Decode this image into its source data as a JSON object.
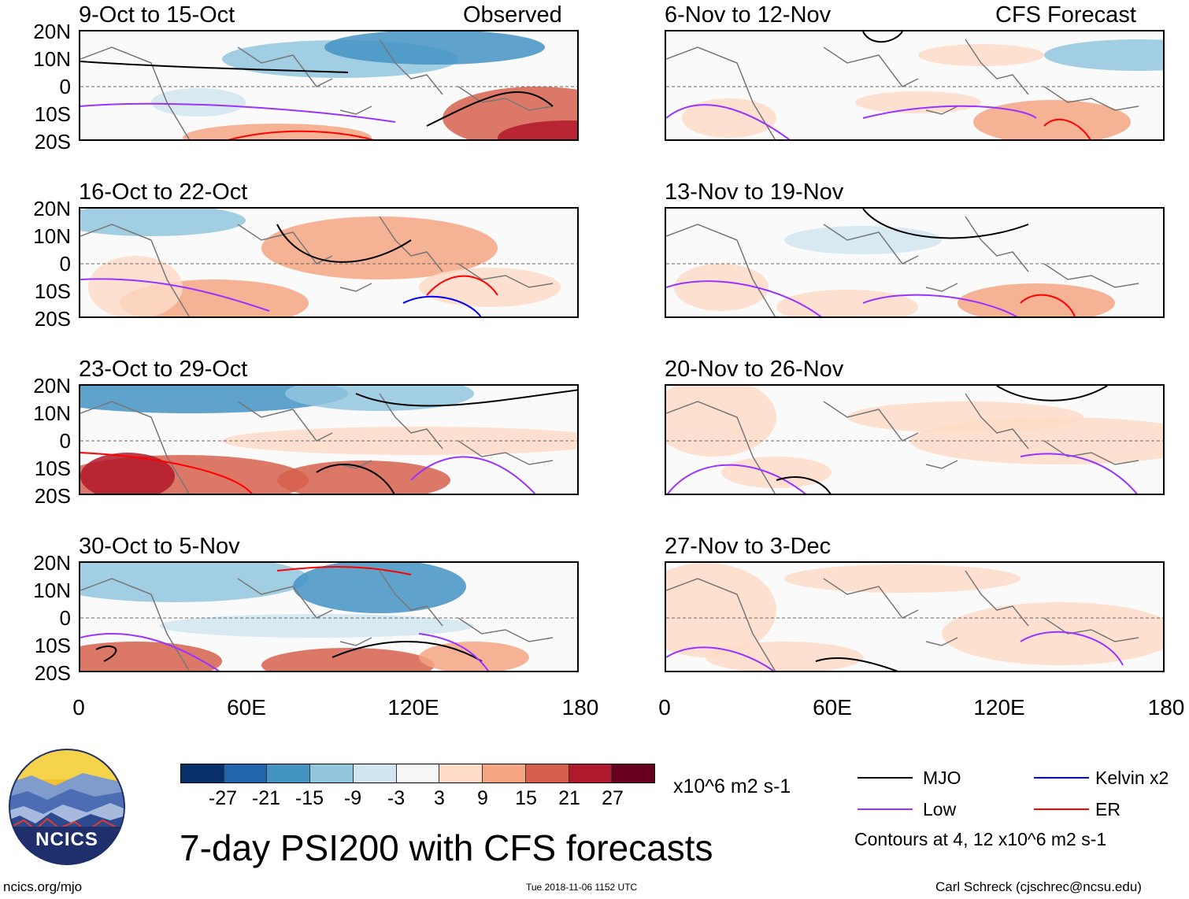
{
  "panels": [
    {
      "title": "9-Oct to 15-Oct",
      "tag": "Observed"
    },
    {
      "title": "16-Oct to 22-Oct",
      "tag": ""
    },
    {
      "title": "23-Oct to 29-Oct",
      "tag": ""
    },
    {
      "title": "30-Oct to 5-Nov",
      "tag": ""
    },
    {
      "title": "6-Nov to 12-Nov",
      "tag": "CFS Forecast"
    },
    {
      "title": "13-Nov to 19-Nov",
      "tag": ""
    },
    {
      "title": "20-Nov to 26-Nov",
      "tag": ""
    },
    {
      "title": "27-Nov to 3-Dec",
      "tag": ""
    }
  ],
  "lat_labels": [
    "20N",
    "10N",
    "0",
    "10S",
    "20S"
  ],
  "lon_labels": [
    "0",
    "60E",
    "120E",
    "180"
  ],
  "colorbar": {
    "colors": [
      "#08306b",
      "#2166ac",
      "#4393c3",
      "#92c5de",
      "#d1e5f0",
      "#f7f7f7",
      "#fddbc7",
      "#f4a582",
      "#d6604d",
      "#b2182b",
      "#67001f"
    ],
    "ticks": [
      "-27",
      "-21",
      "-15",
      "-9",
      "-3",
      "3",
      "9",
      "15",
      "21",
      "27"
    ],
    "units": "x10^6 m2 s-1"
  },
  "legend": {
    "mjo": "MJO",
    "kelvin": "Kelvin x2",
    "low": "Low",
    "er": "ER",
    "contours_note": "Contours at 4, 12 x10^6 m2 s-1",
    "colors": {
      "mjo": "#000000",
      "kelvin": "#0000ff",
      "low": "#9933ff",
      "er": "#ff0000"
    }
  },
  "title": "7-day PSI200 with CFS forecasts",
  "logo_text": "NCICS",
  "footer": {
    "site": "ncics.org/mjo",
    "timestamp": "Tue 2018-11-06 1152 UTC",
    "author": "Carl Schreck (cjschrec@ncsu.edu)"
  }
}
